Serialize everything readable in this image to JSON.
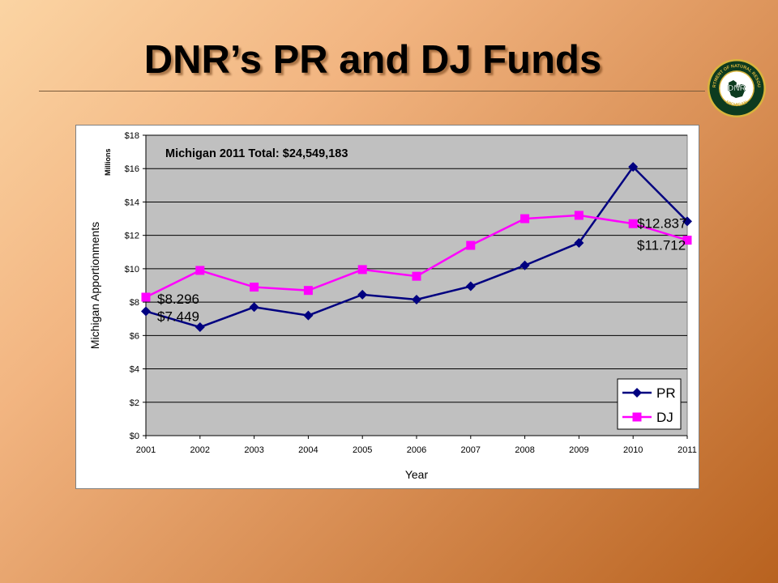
{
  "slide": {
    "title": "DNR’s PR and DJ Funds",
    "logo": {
      "icon": "dnr-michigan-seal-icon",
      "arc_top": "DEPARTMENT OF NATURAL RESOURCES",
      "arc_bottom": "MICHIGAN",
      "center_text": "DNR",
      "colors": {
        "ring": "#0d3b1f",
        "gold": "#d9b43c"
      }
    }
  },
  "chart_data": {
    "type": "line",
    "title": "Michigan 2011 Total:  $24,549,183",
    "xlabel": "Year",
    "ylabel": "Michigan Apportionments",
    "units_label": "Millions",
    "x": [
      "2001",
      "2002",
      "2003",
      "2004",
      "2005",
      "2006",
      "2007",
      "2008",
      "2009",
      "2010",
      "2011"
    ],
    "ylim": [
      0,
      18
    ],
    "yticks": [
      "$0",
      "$2",
      "$4",
      "$6",
      "$8",
      "$10",
      "$12",
      "$14",
      "$16",
      "$18"
    ],
    "grid": true,
    "legend_position": "bottom-right",
    "plot_background": "#c0c0c0",
    "series": [
      {
        "name": "PR",
        "color": "#000080",
        "marker": "diamond",
        "values": [
          7.449,
          6.5,
          7.7,
          7.2,
          8.45,
          8.15,
          8.95,
          10.2,
          11.55,
          16.1,
          12.837
        ]
      },
      {
        "name": "DJ",
        "color": "#ff00ff",
        "marker": "square",
        "values": [
          8.296,
          9.9,
          8.9,
          8.7,
          9.95,
          9.55,
          11.4,
          13.0,
          13.2,
          12.7,
          11.712
        ]
      }
    ],
    "annotations": [
      {
        "text": "$8.296",
        "series": "DJ",
        "x": "2001",
        "y": 8.296
      },
      {
        "text": "$7.449",
        "series": "PR",
        "x": "2001",
        "y": 7.449
      },
      {
        "text": "$12.837",
        "series": "PR",
        "x": "2011",
        "y": 12.837
      },
      {
        "text": "$11.712",
        "series": "DJ",
        "x": "2011",
        "y": 11.712
      }
    ]
  }
}
